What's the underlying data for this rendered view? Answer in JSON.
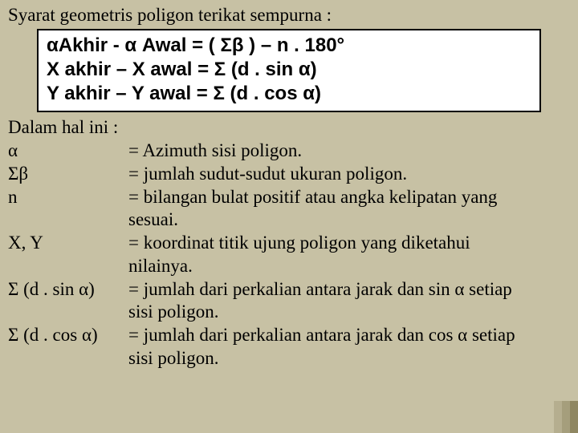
{
  "colors": {
    "background": "#c7c1a4",
    "box_bg": "#ffffff",
    "box_border": "#000000",
    "text": "#000000",
    "accent1": "rgba(120,110,70,0.22)",
    "accent2": "rgba(120,110,70,0.42)",
    "accent3": "rgba(120,110,70,0.70)"
  },
  "typography": {
    "body_font": "Times New Roman",
    "body_size_pt": 17,
    "formula_font": "Arial",
    "formula_size_pt": 18,
    "formula_weight": "bold"
  },
  "title": "Syarat geometris poligon terikat sempurna :",
  "formulas": {
    "line1": "αAkhir - α Awal = ( Σβ ) – n . 180°",
    "line2": "X akhir – X awal = Σ (d . sin α)",
    "line3": "Y akhir – Y awal = Σ (d . cos α)"
  },
  "subhead": "Dalam hal ini :",
  "definitions": [
    {
      "term": "α",
      "desc": "= Azimuth sisi poligon."
    },
    {
      "term": "Σβ",
      "desc": "= jumlah sudut-sudut ukuran poligon."
    },
    {
      "term": "n",
      "desc": "= bilangan bulat positif atau angka kelipatan yang",
      "cont": "   sesuai."
    },
    {
      "term": "X, Y",
      "desc": "= koordinat titik ujung poligon yang diketahui",
      "cont": "   nilainya."
    },
    {
      "term": "Σ (d . sin α)",
      "desc": "= jumlah dari perkalian antara jarak dan sin α setiap",
      "cont": "   sisi poligon."
    },
    {
      "term": "Σ (d . cos α)",
      "desc": "= jumlah dari perkalian antara jarak dan cos α setiap",
      "cont": "   sisi poligon."
    }
  ]
}
